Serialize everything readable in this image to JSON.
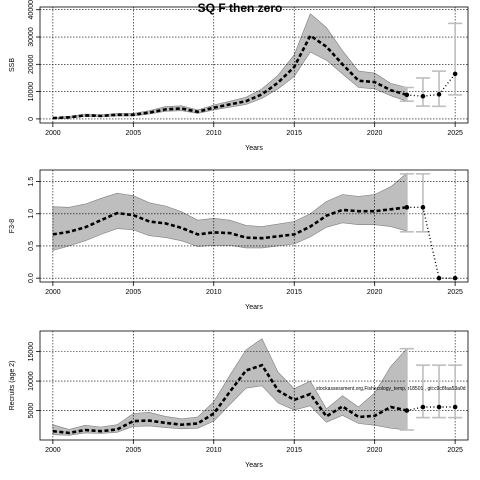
{
  "figure": {
    "title": "SQ F then zero",
    "annotation": "stockassessment.org,Fishecology_temp, r18501 , git:c9c8faa53a0d"
  },
  "chart_data": [
    {
      "type": "line",
      "id": "ssb",
      "ylabel": "SSB",
      "xlabel": "Years",
      "xlim": [
        1999.2,
        2025.8
      ],
      "ylim": [
        -1500,
        41000
      ],
      "xticks": [
        2000,
        2005,
        2010,
        2015,
        2020,
        2025
      ],
      "yticks": [
        0,
        10000,
        20000,
        30000,
        40000
      ],
      "grid": true,
      "x": [
        2000,
        2001,
        2002,
        2003,
        2004,
        2005,
        2006,
        2007,
        2008,
        2009,
        2010,
        2011,
        2012,
        2013,
        2014,
        2015,
        2016,
        2017,
        2018,
        2019,
        2020,
        2021,
        2022
      ],
      "estimate": [
        300,
        600,
        1300,
        1100,
        1500,
        1500,
        2300,
        3500,
        3800,
        2600,
        4100,
        5300,
        6500,
        9000,
        13300,
        19000,
        30500,
        26500,
        20000,
        14000,
        13500,
        10500,
        8800
      ],
      "lower": [
        150,
        350,
        900,
        800,
        1100,
        1100,
        1800,
        2800,
        3000,
        2000,
        3300,
        4300,
        5300,
        7500,
        11000,
        15500,
        24500,
        21500,
        16500,
        11500,
        11000,
        8500,
        6500
      ],
      "upper": [
        500,
        900,
        1800,
        1500,
        2000,
        2000,
        3000,
        4500,
        4800,
        3300,
        5100,
        6500,
        7900,
        11000,
        16000,
        23500,
        38500,
        33500,
        25000,
        17500,
        16800,
        13000,
        11500
      ],
      "forecast": [
        {
          "x": 2022,
          "y": 8800,
          "lower": 6500,
          "upper": 11500
        },
        {
          "x": 2023,
          "y": 8300,
          "lower": 4700,
          "upper": 15000
        },
        {
          "x": 2024,
          "y": 9000,
          "lower": 4600,
          "upper": 17500
        },
        {
          "x": 2025,
          "y": 16500,
          "lower": 8800,
          "upper": 35000
        }
      ]
    },
    {
      "type": "line",
      "id": "fbar",
      "ylabel": "F3-8",
      "xlabel": "Years",
      "xlim": [
        1999.2,
        2025.8
      ],
      "ylim": [
        -0.06,
        1.68
      ],
      "xticks": [
        2000,
        2005,
        2010,
        2015,
        2020,
        2025
      ],
      "yticks": [
        0.0,
        0.5,
        1.0,
        1.5
      ],
      "ytick_labels": [
        "0.0",
        "0.5",
        "1.0",
        "1.5"
      ],
      "grid": true,
      "x": [
        2000,
        2001,
        2002,
        2003,
        2004,
        2005,
        2006,
        2007,
        2008,
        2009,
        2010,
        2011,
        2012,
        2013,
        2014,
        2015,
        2016,
        2017,
        2018,
        2019,
        2020,
        2021,
        2022
      ],
      "estimate": [
        0.68,
        0.72,
        0.79,
        0.9,
        1.01,
        0.98,
        0.88,
        0.85,
        0.78,
        0.68,
        0.71,
        0.7,
        0.63,
        0.62,
        0.65,
        0.68,
        0.8,
        0.97,
        1.06,
        1.04,
        1.04,
        1.07,
        1.1
      ],
      "lower": [
        0.43,
        0.5,
        0.58,
        0.68,
        0.77,
        0.75,
        0.66,
        0.63,
        0.58,
        0.49,
        0.51,
        0.51,
        0.47,
        0.47,
        0.5,
        0.53,
        0.64,
        0.79,
        0.86,
        0.83,
        0.83,
        0.8,
        0.73
      ],
      "upper": [
        1.11,
        1.1,
        1.15,
        1.24,
        1.32,
        1.28,
        1.17,
        1.12,
        1.03,
        0.9,
        0.93,
        0.9,
        0.82,
        0.8,
        0.84,
        0.88,
        1.0,
        1.19,
        1.3,
        1.27,
        1.3,
        1.42,
        1.63
      ],
      "forecast": [
        {
          "x": 2022,
          "y": 1.1,
          "lower": 0.72,
          "upper": 1.62
        },
        {
          "x": 2023,
          "y": 1.1,
          "lower": 0.72,
          "upper": 1.62
        },
        {
          "x": 2024,
          "y": 0.0,
          "lower": 0.0,
          "upper": 0.0
        },
        {
          "x": 2025,
          "y": 0.0,
          "lower": 0.0,
          "upper": 0.0
        }
      ]
    },
    {
      "type": "line",
      "id": "recruits",
      "ylabel": "Recruits (age 2)",
      "xlabel": "Years",
      "xlim": [
        1999.2,
        2025.8
      ],
      "ylim": [
        0,
        18500
      ],
      "xticks": [
        2000,
        2005,
        2010,
        2015,
        2020,
        2025
      ],
      "yticks": [
        5000,
        10000,
        15000
      ],
      "grid": true,
      "x": [
        2000,
        2001,
        2002,
        2003,
        2004,
        2005,
        2006,
        2007,
        2008,
        2009,
        2010,
        2011,
        2012,
        2013,
        2014,
        2015,
        2016,
        2017,
        2018,
        2019,
        2020,
        2021,
        2022
      ],
      "estimate": [
        1500,
        1200,
        1700,
        1500,
        1800,
        3200,
        3300,
        2900,
        2600,
        2800,
        4500,
        8200,
        11800,
        12700,
        8400,
        6800,
        7800,
        4000,
        5700,
        3900,
        4100,
        5600,
        5000
      ],
      "lower": [
        900,
        800,
        1200,
        1100,
        1300,
        2300,
        2400,
        2100,
        1900,
        2000,
        3200,
        6000,
        8800,
        9200,
        6300,
        5100,
        5800,
        3000,
        4200,
        2800,
        2500,
        2000,
        1700
      ],
      "upper": [
        2600,
        1800,
        2500,
        2200,
        2600,
        4500,
        4700,
        4000,
        3600,
        3900,
        6500,
        11000,
        15300,
        17200,
        11500,
        8700,
        10000,
        5300,
        7500,
        5600,
        8000,
        12500,
        15500
      ],
      "forecast": [
        {
          "x": 2022,
          "y": 5000,
          "lower": 1700,
          "upper": 15500
        },
        {
          "x": 2023,
          "y": 5600,
          "lower": 3800,
          "upper": 12700
        },
        {
          "x": 2024,
          "y": 5600,
          "lower": 3800,
          "upper": 12700
        },
        {
          "x": 2025,
          "y": 5600,
          "lower": 3800,
          "upper": 12700
        }
      ]
    }
  ],
  "colors": {
    "band": "#bebebe",
    "line": "#000000",
    "errorbar": "#bebebe",
    "grid": "#000000"
  }
}
